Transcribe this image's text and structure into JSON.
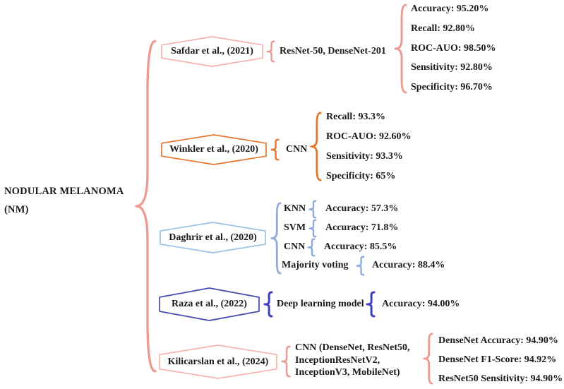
{
  "root": {
    "title_line1": "NODULAR MELANOMA",
    "title_line2": "(NM)"
  },
  "colors": {
    "salmon": "#ec9a92",
    "salmon_light": "#f5b3ac",
    "orange": "#e5752e",
    "light_blue": "#9cc3e5",
    "periwinkle": "#8faadc",
    "navy": "#4549ae",
    "navy_brace": "#3f3fc3",
    "text": "#1a1a1a"
  },
  "branches": [
    {
      "author": "Safdar et al., (2021)",
      "model": "ResNet-50, DenseNet-201",
      "metrics": [
        "Accuracy: 95.20%",
        "Recall: 92.80%",
        "ROC-AUO: 98.50%",
        "Sensitivity: 92.80%",
        "Specificity: 96.70%"
      ]
    },
    {
      "author": "Winkler et al., (2020)",
      "model": "CNN",
      "metrics": [
        "Recall: 93.3%",
        "ROC-AUO: 92.60%",
        "Sensitivity: 93.3%",
        "Specificity: 65%"
      ]
    },
    {
      "author": "Daghrir et al., (2020)",
      "pairs": [
        {
          "model": "KNN",
          "metric": "Accuracy: 57.3%"
        },
        {
          "model": "SVM",
          "metric": "Accuracy: 71.8%"
        },
        {
          "model": "CNN",
          "metric": "Accuracy: 85.5%"
        },
        {
          "model": "Majority voting",
          "metric": "Accuracy: 88.4%"
        }
      ]
    },
    {
      "author": "Raza et al., (2022)",
      "model": "Deep learning model",
      "metrics": [
        "Accuracy: 94.00%"
      ]
    },
    {
      "author": "Kilicarslan et al., (2024)",
      "model_lines": [
        "CNN (DenseNet, ResNet50,",
        "InceptionResNetV2,",
        "InceptionV3, MobileNet)"
      ],
      "metrics": [
        "DenseNet Accuracy: 94.90%",
        "DenseNet F1-Score: 94.92%",
        "ResNet50 Sensitivity: 94.90%"
      ]
    }
  ]
}
